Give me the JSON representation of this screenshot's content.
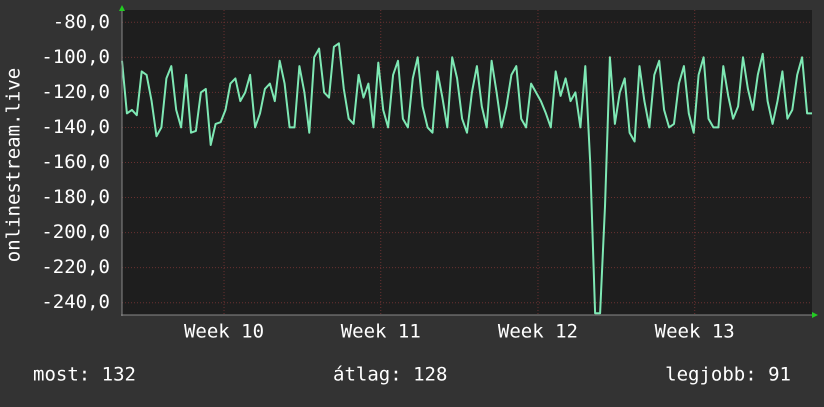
{
  "chart_data": {
    "type": "line",
    "y_label": "onlinestream.live",
    "x": [
      0,
      1,
      2,
      3,
      4,
      5,
      6,
      7,
      8,
      9,
      10,
      11,
      12,
      13,
      14,
      15,
      16,
      17,
      18,
      19,
      20,
      21,
      22,
      23,
      24,
      25,
      26,
      27,
      28,
      29,
      30,
      31,
      32,
      33,
      34,
      35,
      36,
      37,
      38,
      39,
      40,
      41,
      42,
      43,
      44,
      45,
      46,
      47,
      48,
      49,
      50,
      51,
      52,
      53,
      54,
      55,
      56,
      57,
      58,
      59,
      60,
      61,
      62,
      63,
      64,
      65,
      66,
      67,
      68,
      69,
      70,
      71,
      72,
      73,
      74,
      75,
      76,
      77,
      78,
      79,
      80,
      81,
      82,
      83,
      84,
      85,
      86,
      87,
      88,
      89,
      90,
      91,
      92,
      93,
      94,
      95,
      96,
      97,
      98,
      99,
      100,
      101,
      102,
      103,
      104,
      105,
      106,
      107,
      108,
      109,
      110,
      111,
      112,
      113,
      114,
      115,
      116,
      117,
      118,
      119,
      120,
      121,
      122,
      123,
      124,
      125,
      126,
      127,
      128,
      129,
      130,
      131,
      132,
      133,
      134,
      135,
      136,
      137,
      138,
      139,
      140
    ],
    "series": [
      {
        "name": "onlinestream.live",
        "color": "#7ee8b4",
        "values": [
          -102,
          -132,
          -130,
          -133,
          -108,
          -110,
          -125,
          -145,
          -140,
          -112,
          -105,
          -130,
          -140,
          -110,
          -143,
          -142,
          -120,
          -118,
          -150,
          -138,
          -137,
          -130,
          -115,
          -112,
          -125,
          -120,
          -110,
          -140,
          -132,
          -118,
          -115,
          -125,
          -102,
          -115,
          -140,
          -140,
          -105,
          -120,
          -143,
          -100,
          -95,
          -120,
          -123,
          -94,
          -92,
          -118,
          -135,
          -138,
          -110,
          -123,
          -115,
          -140,
          -103,
          -130,
          -140,
          -110,
          -102,
          -135,
          -140,
          -112,
          -100,
          -128,
          -140,
          -143,
          -108,
          -123,
          -140,
          -100,
          -112,
          -135,
          -143,
          -120,
          -105,
          -128,
          -140,
          -102,
          -120,
          -140,
          -128,
          -110,
          -105,
          -135,
          -140,
          -115,
          -120,
          -125,
          -132,
          -140,
          -108,
          -122,
          -112,
          -125,
          -120,
          -140,
          -105,
          -160,
          -246,
          -246,
          -185,
          -100,
          -138,
          -120,
          -112,
          -143,
          -148,
          -105,
          -125,
          -140,
          -110,
          -102,
          -130,
          -140,
          -138,
          -115,
          -105,
          -132,
          -143,
          -110,
          -100,
          -135,
          -140,
          -140,
          -105,
          -122,
          -135,
          -128,
          -100,
          -118,
          -130,
          -110,
          -98,
          -125,
          -138,
          -125,
          -108,
          -135,
          -130,
          -110,
          -100,
          -132,
          -132
        ]
      }
    ],
    "xlim": [
      0,
      140
    ],
    "xticks": [
      {
        "value": 20.7,
        "label": "Week 10"
      },
      {
        "value": 52.5,
        "label": "Week 11"
      },
      {
        "value": 84.4,
        "label": "Week 12"
      },
      {
        "value": 116.2,
        "label": "Week 13"
      }
    ],
    "ylim": [
      -247,
      -73
    ],
    "yticks": [
      {
        "value": -80,
        "label": "-80,0"
      },
      {
        "value": -100,
        "label": "-100,0"
      },
      {
        "value": -120,
        "label": "-120,0"
      },
      {
        "value": -140,
        "label": "-140,0"
      },
      {
        "value": -160,
        "label": "-160,0"
      },
      {
        "value": -180,
        "label": "-180,0"
      },
      {
        "value": -200,
        "label": "-200,0"
      },
      {
        "value": -220,
        "label": "-220,0"
      },
      {
        "value": -240,
        "label": "-240,0"
      }
    ],
    "grid": true,
    "footer": [
      "most: 132",
      "átlag: 128",
      "legjobb: 91"
    ]
  }
}
